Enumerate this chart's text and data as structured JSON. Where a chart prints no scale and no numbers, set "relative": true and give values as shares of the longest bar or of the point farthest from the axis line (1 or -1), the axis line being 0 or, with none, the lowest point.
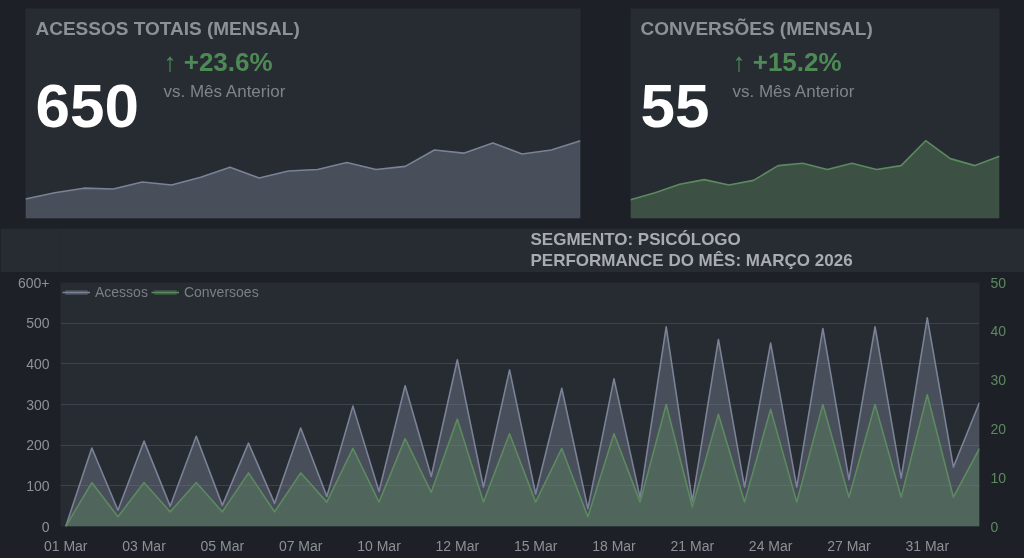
{
  "chart_data": [
    {
      "type": "area",
      "title": "ACESSOS TOTAIS (MENSAL)",
      "annotations": [
        "650",
        "↑ +23.6%",
        "vs. Mês Anterior"
      ],
      "relative": true,
      "categories": [
        null,
        null,
        null,
        null,
        null,
        null,
        null,
        null,
        null,
        null,
        null,
        null,
        null,
        null,
        null,
        null,
        null,
        null,
        null,
        null
      ],
      "series": [
        {
          "color": "#7a8296",
          "values": [
            0.25,
            0.33,
            0.39,
            0.38,
            0.47,
            0.43,
            0.53,
            0.66,
            0.52,
            0.61,
            0.63,
            0.72,
            0.63,
            0.67,
            0.88,
            0.84,
            0.97,
            0.83,
            0.88,
            1
          ]
        }
      ]
    },
    {
      "type": "area",
      "title": "CONVERSÕES (MENSAL)",
      "annotations": [
        "55",
        "↑ +15.2%",
        "vs. Mês Anterior"
      ],
      "relative": true,
      "categories": [
        null,
        null,
        null,
        null,
        null,
        null,
        null,
        null,
        null,
        null,
        null,
        null,
        null,
        null,
        null,
        null
      ],
      "series": [
        {
          "color": "#5c8a5f",
          "values": [
            0.24,
            0.33,
            0.44,
            0.5,
            0.43,
            0.49,
            0.68,
            0.71,
            0.63,
            0.71,
            0.63,
            0.68,
            1,
            0.77,
            0.68,
            0.8
          ]
        }
      ]
    },
    {
      "type": "area",
      "title": "SEGMENTO: PSICÓLOGO",
      "subtitle": "PERFORMANCE DO MÊS: MARÇO 2026",
      "legend": "top left",
      "grid": "y",
      "categories": [
        "01 Mar",
        null,
        null,
        "03 Mar",
        null,
        null,
        "05 Mar",
        null,
        null,
        "07 Mar",
        null,
        null,
        "10 Mar",
        null,
        null,
        "12 Mar",
        null,
        null,
        "15 Mar",
        null,
        null,
        "18 Mar",
        null,
        null,
        "21 Mar",
        null,
        null,
        "24 Mar",
        null,
        null,
        "27 Mar",
        null,
        null,
        "31 Mar",
        null,
        null
      ],
      "ylim": [
        0,
        600
      ],
      "yticks": [
        0,
        100,
        200,
        300,
        400,
        500,
        {
          "value": 600,
          "label": "600+"
        }
      ],
      "y2lim": [
        0,
        50
      ],
      "y2ticks": [
        0,
        10,
        20,
        30,
        40,
        50
      ],
      "series": [
        {
          "name": "Acessos",
          "color": "#7a8296",
          "values": [
            0,
            193,
            40,
            210,
            50,
            222,
            52,
            205,
            57,
            242,
            74,
            296,
            86,
            346,
            123,
            410,
            97,
            385,
            80,
            340,
            44,
            363,
            71,
            491,
            62,
            460,
            97,
            451,
            97,
            487,
            115,
            491,
            119,
            513,
            146,
            305
          ]
        },
        {
          "name": "Conversoes",
          "color": "#5c8a5f",
          "axis": "y2",
          "values": [
            0,
            9,
            2,
            9,
            3,
            9,
            3,
            11,
            3,
            11,
            5,
            16,
            5,
            18,
            7,
            22,
            5,
            19,
            5,
            16,
            2,
            19,
            5,
            25,
            4,
            23,
            5,
            24,
            5,
            25,
            6,
            25,
            6,
            27,
            6,
            16
          ]
        }
      ]
    }
  ]
}
